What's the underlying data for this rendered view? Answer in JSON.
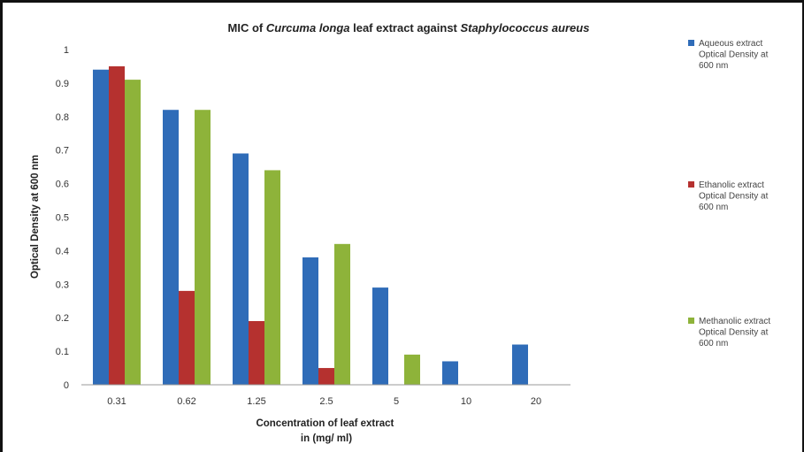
{
  "chart_data": {
    "type": "bar",
    "title": {
      "prefix": "MIC of ",
      "italic_1": "Curcuma longa",
      "middle": " leaf extract against ",
      "italic_2": "Staphylococcus aureus"
    },
    "categories": [
      "0.31",
      "0.62",
      "1.25",
      "2.5",
      "5",
      "10",
      "20"
    ],
    "series": [
      {
        "name_lines": [
          "Aqueous extract",
          "Optical Density at",
          "600 nm"
        ],
        "color": "#2F6CB8",
        "values": [
          0.94,
          0.82,
          0.69,
          0.38,
          0.29,
          0.07,
          0.12
        ]
      },
      {
        "name_lines": [
          "Ethanolic extract",
          "Optical Density at",
          "600 nm"
        ],
        "color": "#B5312F",
        "values": [
          0.95,
          0.28,
          0.19,
          0.05,
          null,
          null,
          null
        ]
      },
      {
        "name_lines": [
          "Methanolic extract",
          "Optical Density at",
          "600 nm"
        ],
        "color": "#8EB33A",
        "values": [
          0.91,
          0.82,
          0.64,
          0.42,
          0.09,
          null,
          null
        ]
      }
    ],
    "ylabel": "Optical Density at 600 nm",
    "xlabel_lines": [
      "Concentration of leaf extract",
      "in (mg/ ml)"
    ],
    "ylim": [
      0,
      1
    ],
    "yticks": [
      "0",
      "0.1",
      "0.2",
      "0.3",
      "0.4",
      "0.5",
      "0.6",
      "0.7",
      "0.8",
      "0.9",
      "1"
    ],
    "grid": false,
    "legend_position": "right"
  }
}
